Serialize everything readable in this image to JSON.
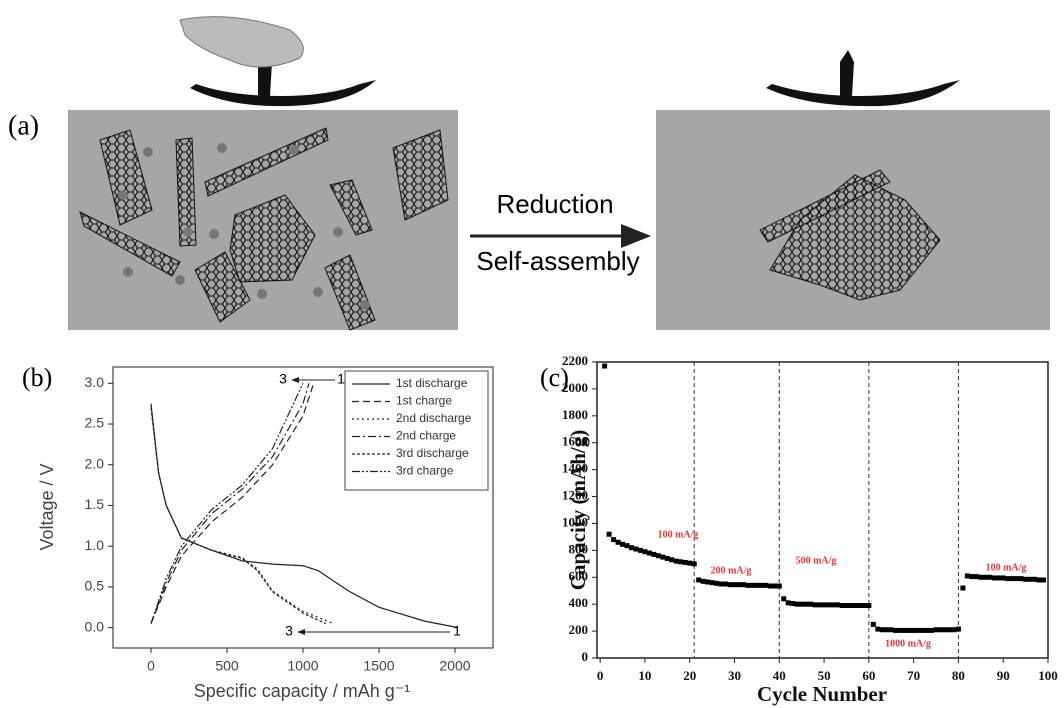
{
  "diagram": {
    "label": "(a)",
    "arrow_top": "Reduction",
    "arrow_bottom": "Self-assembly"
  },
  "chart_data": [
    {
      "type": "line",
      "panel_label": "(b)",
      "x_label": "Specific capacity / mAh g⁻¹",
      "y_label": "Voltage / V",
      "xlim": [
        -250,
        2250
      ],
      "ylim": [
        -0.25,
        3.2
      ],
      "xticks": [
        0,
        500,
        1000,
        1500,
        2000
      ],
      "yticks": [
        {
          "value": 0,
          "label": "0.0"
        },
        0.5,
        {
          "value": 1,
          "label": "1.0"
        },
        1.5,
        {
          "value": 2,
          "label": "2.0"
        },
        2.5,
        {
          "value": 3,
          "label": "3.0"
        }
      ],
      "legend": "upper right",
      "annotations": [
        "3",
        "1",
        "3",
        "1"
      ],
      "series": [
        {
          "name": "1st discharge",
          "color": "#222222",
          "dash": "solid",
          "x": [
            0,
            50,
            100,
            200,
            400,
            600,
            800,
            1000,
            1100,
            1300,
            1500,
            1800,
            2020
          ],
          "values": [
            2.75,
            1.9,
            1.5,
            1.1,
            0.95,
            0.82,
            0.78,
            0.76,
            0.7,
            0.45,
            0.25,
            0.08,
            0
          ]
        },
        {
          "name": "1st charge",
          "color": "#222222",
          "dash": "dashed",
          "x": [
            0,
            100,
            200,
            400,
            600,
            800,
            1000,
            1070
          ],
          "values": [
            0.05,
            0.5,
            0.88,
            1.3,
            1.6,
            2.0,
            2.6,
            3.0
          ]
        },
        {
          "name": "2nd discharge",
          "color": "#222222",
          "dash": "dotted",
          "x": [
            0,
            50,
            100,
            200,
            400,
            600,
            700,
            800,
            1000,
            1200
          ],
          "values": [
            2.7,
            1.9,
            1.5,
            1.1,
            0.95,
            0.86,
            0.72,
            0.45,
            0.2,
            0.05
          ]
        },
        {
          "name": "2nd charge",
          "color": "#222222",
          "dash": "dashdot",
          "x": [
            0,
            100,
            200,
            400,
            600,
            800,
            1000,
            1040
          ],
          "values": [
            0.05,
            0.55,
            0.95,
            1.4,
            1.7,
            2.1,
            2.75,
            3.0
          ]
        },
        {
          "name": "3rd discharge",
          "color": "#222222",
          "dash": "densedot",
          "x": [
            0,
            50,
            100,
            200,
            400,
            600,
            700,
            800,
            1000,
            1150
          ],
          "values": [
            2.7,
            1.9,
            1.5,
            1.1,
            0.95,
            0.85,
            0.7,
            0.44,
            0.18,
            0.05
          ]
        },
        {
          "name": "3rd charge",
          "color": "#222222",
          "dash": "dashdotdot",
          "x": [
            0,
            100,
            200,
            400,
            600,
            800,
            1000
          ],
          "values": [
            0.05,
            0.6,
            1.0,
            1.45,
            1.75,
            2.2,
            3.0
          ]
        }
      ]
    },
    {
      "type": "scatter",
      "panel_label": "(c)",
      "x_label": "Cycle Number",
      "y_label": "Capacity (mAh/g)",
      "xlim": [
        -0.7,
        100
      ],
      "ylim": [
        0,
        2200
      ],
      "xticks": [
        0,
        10,
        20,
        30,
        40,
        50,
        60,
        70,
        80,
        90,
        100
      ],
      "yticks": [
        0,
        200,
        400,
        600,
        800,
        1000,
        1200,
        1400,
        1600,
        1800,
        2000,
        2200
      ],
      "vlines": [
        21,
        40,
        60,
        80
      ],
      "annotations": [
        "100 mA/g",
        "200 mA/g",
        "500 mA/g",
        "1000 mA/g",
        "100 mA/g"
      ],
      "annotation_color": "#e53935",
      "color": "#000000",
      "x": [
        1,
        2,
        3,
        4,
        5,
        6,
        7,
        8,
        9,
        10,
        11,
        12,
        13,
        14,
        15,
        16,
        17,
        18,
        19,
        20,
        21,
        22,
        23,
        24,
        25,
        26,
        27,
        28,
        29,
        30,
        31,
        32,
        33,
        34,
        35,
        36,
        37,
        38,
        39,
        40,
        41,
        42,
        43,
        44,
        45,
        46,
        47,
        48,
        49,
        50,
        51,
        52,
        53,
        54,
        55,
        56,
        57,
        58,
        59,
        60,
        61,
        62,
        63,
        64,
        65,
        66,
        67,
        68,
        69,
        70,
        71,
        72,
        73,
        74,
        75,
        76,
        77,
        78,
        79,
        80,
        81,
        82,
        83,
        84,
        85,
        86,
        87,
        88,
        89,
        90,
        91,
        92,
        93,
        94,
        95,
        96,
        97,
        98,
        99
      ],
      "values": [
        2170,
        920,
        880,
        860,
        845,
        835,
        820,
        810,
        800,
        790,
        780,
        770,
        760,
        750,
        740,
        730,
        720,
        715,
        710,
        705,
        700,
        580,
        570,
        565,
        560,
        555,
        550,
        550,
        545,
        545,
        545,
        545,
        540,
        540,
        540,
        540,
        540,
        535,
        535,
        535,
        440,
        410,
        405,
        400,
        400,
        400,
        400,
        395,
        395,
        395,
        395,
        395,
        395,
        390,
        390,
        390,
        390,
        390,
        390,
        390,
        250,
        215,
        210,
        210,
        210,
        205,
        205,
        205,
        205,
        205,
        205,
        205,
        205,
        205,
        210,
        210,
        210,
        210,
        210,
        215,
        520,
        610,
        605,
        605,
        600,
        600,
        600,
        595,
        595,
        595,
        590,
        590,
        590,
        590,
        585,
        585,
        585,
        580,
        580
      ]
    }
  ]
}
